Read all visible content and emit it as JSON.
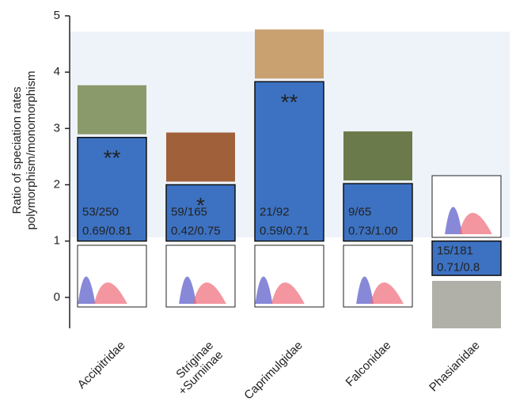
{
  "chart_data": {
    "type": "bar",
    "ylabel": [
      "Ratio of speciation rates",
      "polymorphism/monomorphism"
    ],
    "categories": [
      "Accipitridae",
      "Striginae\n+Surniinae",
      "Caprimulgidae",
      "Falconidae",
      "Phasianidae"
    ],
    "values": [
      2.84,
      2.0,
      3.83,
      2.02,
      0.39
    ],
    "base": 1,
    "color": "#3d72c2",
    "significance": [
      "**",
      "*",
      "**",
      null,
      null
    ],
    "counts": [
      "53/250",
      "59/165",
      "21/92",
      "9/65",
      "15/181"
    ],
    "rates": [
      "0.69/0.81",
      "0.42/0.75",
      "0.59/0.71",
      "0.73/1.00",
      "0.71/0.8"
    ],
    "ylim": [
      -0.55,
      5
    ],
    "yticks": [
      0,
      1,
      2,
      3,
      4,
      5
    ]
  }
}
